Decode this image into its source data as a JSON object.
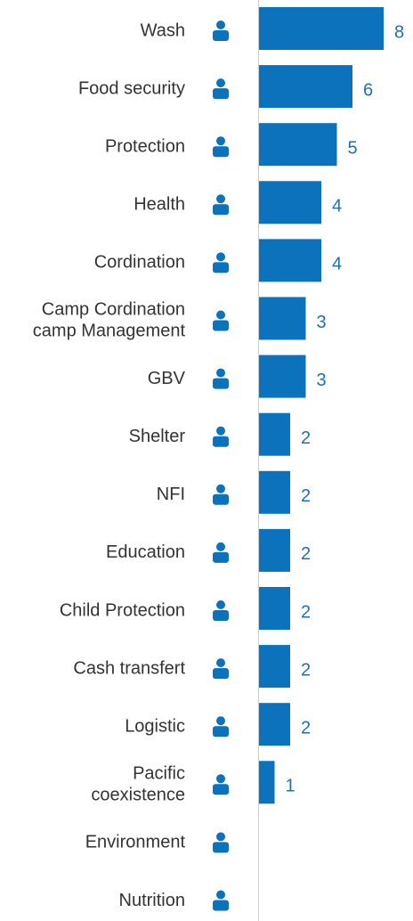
{
  "chart_data": {
    "type": "bar",
    "orientation": "horizontal",
    "categories": [
      "Wash",
      "Food security",
      "Protection",
      "Health",
      "Cordination",
      "Camp Cordination\ncamp Management",
      "GBV",
      "Shelter",
      "NFI",
      "Education",
      "Child Protection",
      "Cash transfert",
      "Logistic",
      "Pacific\ncoexistence",
      "Environment",
      "Nutrition"
    ],
    "values": [
      8,
      6,
      5,
      4,
      4,
      3,
      3,
      2,
      2,
      2,
      2,
      2,
      2,
      1,
      null,
      null
    ],
    "color": "#0b72bb",
    "xlim": [
      0,
      8
    ]
  }
}
